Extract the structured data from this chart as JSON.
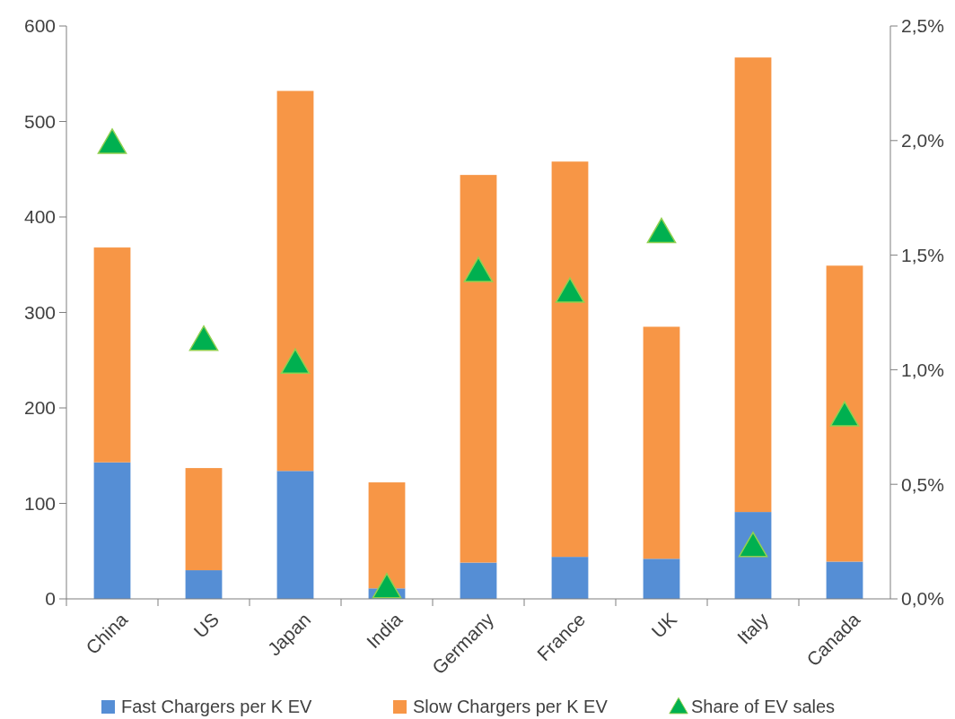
{
  "chart_data": {
    "type": "bar",
    "stacked": true,
    "categories": [
      "China",
      "US",
      "Japan",
      "India",
      "Germany",
      "France",
      "UK",
      "Italy",
      "Canada"
    ],
    "series": [
      {
        "name": "Fast Chargers per K EV",
        "color": "#558ed5",
        "values": [
          143,
          30,
          134,
          11,
          38,
          44,
          42,
          91,
          39
        ]
      },
      {
        "name": "Slow Chargers per K EV",
        "color": "#f79646",
        "values": [
          225,
          107,
          398,
          111,
          406,
          414,
          243,
          476,
          310
        ]
      },
      {
        "name": "Share of EV sales",
        "type": "scatter",
        "axis": "y2",
        "marker": "triangle",
        "color": "#00b050",
        "values": [
          1.98,
          1.12,
          1.02,
          0.04,
          1.42,
          1.33,
          1.59,
          0.22,
          0.79
        ]
      }
    ],
    "ylim": [
      0,
      600
    ],
    "yticks": [
      0,
      100,
      200,
      300,
      400,
      500,
      600
    ],
    "y2lim": [
      0,
      2.5
    ],
    "y2ticks": [
      {
        "value": 0,
        "label": "0,0%"
      },
      {
        "value": 0.5,
        "label": "0,5%"
      },
      {
        "value": 1,
        "label": "1,0%"
      },
      {
        "value": 1.5,
        "label": "1,5%"
      },
      {
        "value": 2,
        "label": "2,0%"
      },
      {
        "value": 2.5,
        "label": "2,5%"
      }
    ],
    "grid": false,
    "legend": "bottom"
  }
}
